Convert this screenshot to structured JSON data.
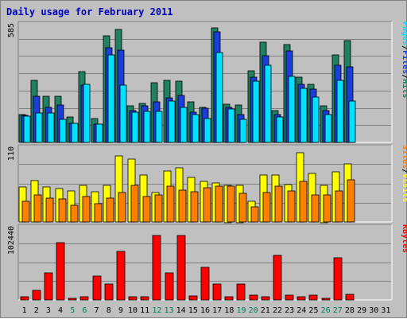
{
  "chart_data": [
    {
      "type": "bar",
      "title": "Daily usage for February 2011",
      "categories": [
        "1",
        "2",
        "3",
        "4",
        "5",
        "6",
        "7",
        "8",
        "9",
        "10",
        "11",
        "12",
        "13",
        "14",
        "15",
        "16",
        "17",
        "18",
        "19",
        "20",
        "21",
        "22",
        "23",
        "24",
        "25",
        "26",
        "27",
        "28",
        "29",
        "30",
        "31"
      ],
      "weekend_days": [
        "5",
        "6",
        "12",
        "13",
        "19",
        "20",
        "26",
        "27"
      ],
      "ymax_label": "585",
      "ylim": [
        0,
        585
      ],
      "ylabel_parts": [
        "Pages",
        "Files",
        "Hits"
      ],
      "series": [
        {
          "name": "Hits",
          "color": "#208060",
          "values": [
            140,
            310,
            230,
            230,
            125,
            350,
            120,
            530,
            560,
            180,
            195,
            295,
            310,
            305,
            200,
            175,
            570,
            190,
            185,
            355,
            500,
            160,
            485,
            325,
            290,
            180,
            435,
            505,
            0,
            0,
            0
          ]
        },
        {
          "name": "Files",
          "color": "#1c3ed8",
          "values": [
            135,
            230,
            175,
            185,
            95,
            285,
            90,
            470,
            460,
            160,
            180,
            200,
            220,
            235,
            150,
            170,
            550,
            175,
            140,
            325,
            430,
            140,
            455,
            290,
            265,
            160,
            385,
            375,
            0,
            0,
            0
          ]
        },
        {
          "name": "Pages",
          "color": "#00e0ff",
          "values": [
            130,
            145,
            145,
            115,
            95,
            290,
            90,
            435,
            285,
            150,
            155,
            155,
            205,
            175,
            140,
            120,
            445,
            165,
            115,
            305,
            385,
            125,
            330,
            270,
            225,
            140,
            310,
            205,
            0,
            0,
            0
          ]
        }
      ]
    },
    {
      "type": "bar",
      "ymax_label": "110",
      "ylim": [
        0,
        110
      ],
      "ylabel_parts": [
        "Sites",
        "Visits"
      ],
      "series": [
        {
          "name": "Visits",
          "color": "#ffff00",
          "values": [
            52,
            62,
            52,
            50,
            46,
            54,
            45,
            54,
            98,
            94,
            70,
            44,
            76,
            80,
            66,
            60,
            58,
            55,
            55,
            31,
            70,
            70,
            56,
            103,
            72,
            55,
            75,
            86,
            0,
            0,
            0
          ]
        },
        {
          "name": "Sites",
          "color": "#ff8000",
          "values": [
            31,
            40,
            35,
            34,
            25,
            38,
            27,
            36,
            44,
            54,
            38,
            40,
            53,
            47,
            45,
            51,
            53,
            53,
            43,
            23,
            44,
            53,
            46,
            60,
            40,
            40,
            46,
            63,
            0,
            0,
            0
          ]
        }
      ]
    },
    {
      "type": "bar",
      "ymax_label": "102440",
      "ylim": [
        0,
        102440
      ],
      "ylabel_parts": [
        "KBytes"
      ],
      "series": [
        {
          "name": "KBytes",
          "color": "#ff0000",
          "values": [
            4000,
            14000,
            38000,
            81000,
            2500,
            4500,
            34000,
            23000,
            69000,
            4000,
            4000,
            91000,
            38000,
            91000,
            5500,
            46000,
            22000,
            4500,
            23000,
            6500,
            4500,
            63000,
            6500,
            5000,
            7000,
            2500,
            60000,
            8000,
            0,
            0,
            0
          ]
        }
      ]
    }
  ]
}
